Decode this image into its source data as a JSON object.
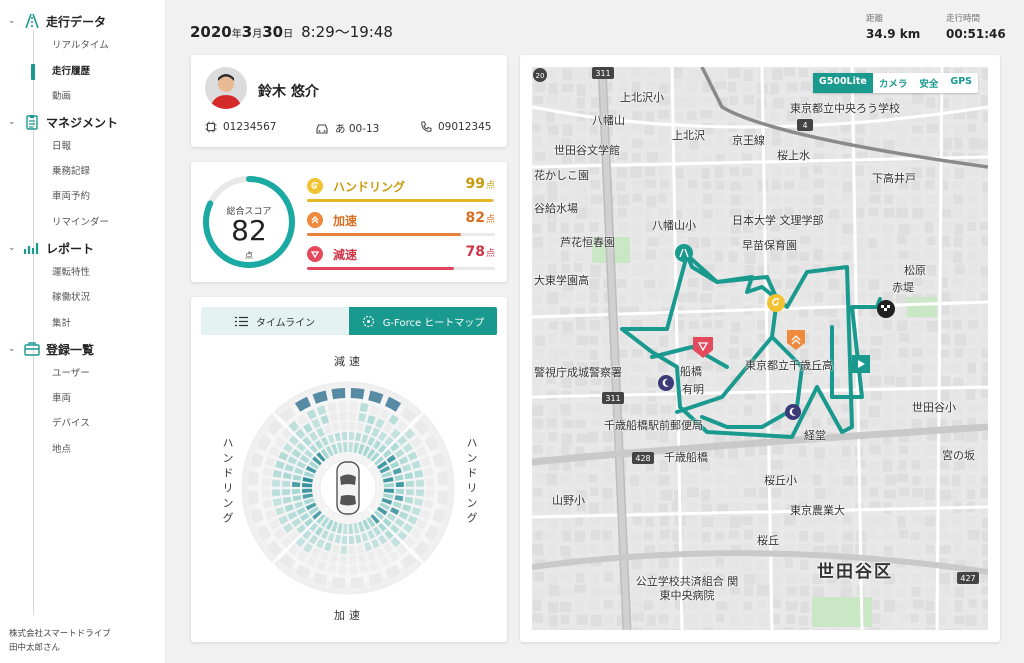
{
  "sidebar": {
    "sections": [
      {
        "title": "走行データ",
        "icon": "road-icon",
        "items": [
          "リアルタイム",
          "走行履歴",
          "動画"
        ]
      },
      {
        "title": "マネジメント",
        "icon": "clipboard-icon",
        "items": [
          "日報",
          "乗務記録",
          "車両予約",
          "リマインダー"
        ]
      },
      {
        "title": "レポート",
        "icon": "bar-chart-icon",
        "items": [
          "運転特性",
          "稼働状況",
          "集計"
        ]
      },
      {
        "title": "登録一覧",
        "icon": "briefcase-icon",
        "items": [
          "ユーザー",
          "車両",
          "デバイス",
          "地点"
        ]
      }
    ],
    "active_item": "走行履歴",
    "company": "株式会社スマートドライブ",
    "user": "田中太郎さん"
  },
  "header": {
    "date_year": "2020",
    "date_year_unit": "年",
    "date_month": "3",
    "date_month_unit": "月",
    "date_day": "30",
    "date_day_unit": "日",
    "time_range": "8:29〜19:48",
    "distance_label": "距離",
    "distance_value": "34.9 km",
    "duration_label": "走行時間",
    "duration_value": "00:51:46"
  },
  "profile": {
    "name": "鈴木 悠介",
    "device_id": "01234567",
    "plate": "あ 00-13",
    "phone": "09012345"
  },
  "score": {
    "label": "総合スコア",
    "value": "82",
    "unit": "点",
    "ring_fraction": 0.82,
    "metrics": [
      {
        "name": "ハンドリング",
        "value": "99",
        "unit": "点",
        "fraction": 0.99,
        "color": "#e5b823",
        "icon": "handling-icon"
      },
      {
        "name": "加速",
        "value": "82",
        "unit": "点",
        "fraction": 0.82,
        "color": "#e8823a",
        "icon": "acceleration-icon"
      },
      {
        "name": "減速",
        "value": "78",
        "unit": "点",
        "fraction": 0.78,
        "color": "#e0465a",
        "icon": "deceleration-icon"
      }
    ]
  },
  "gforce": {
    "tab_timeline": "タイムライン",
    "tab_heatmap": "G-Force ヒートマップ",
    "label_top": "減速",
    "label_bottom": "加速",
    "label_left": "ハンドリング",
    "label_right": "ハンドリング"
  },
  "map": {
    "tabs": [
      "G500Lite",
      "カメラ",
      "安全",
      "GPS"
    ],
    "active_tab": "G500Lite",
    "labels": [
      "上北沢小",
      "八幡山",
      "上北沢",
      "京王線",
      "世田谷文学館",
      "桜上水",
      "花かしこ園",
      "下高井戸",
      "谷給水場",
      "芦花恒春園",
      "八幡山小",
      "日本大学 文理学部",
      "早苗保育園",
      "大東学園高",
      "松原",
      "赤堤",
      "東京都立千歳丘高",
      "船橋",
      "有明",
      "千歳船橋駅前郵便局",
      "千歳船橋",
      "経堂",
      "世田谷小",
      "宮の坂",
      "山野小",
      "桜丘小",
      "東京農業大",
      "桜丘",
      "世田谷区",
      "公立学校共済組合 関東中央病院",
      "東京都立中央ろう学校",
      "警視庁成城警察署",
      "京王線"
    ],
    "road_numbers": [
      "311",
      "4",
      "428",
      "311",
      "427",
      "20"
    ],
    "district": "世田谷区"
  }
}
